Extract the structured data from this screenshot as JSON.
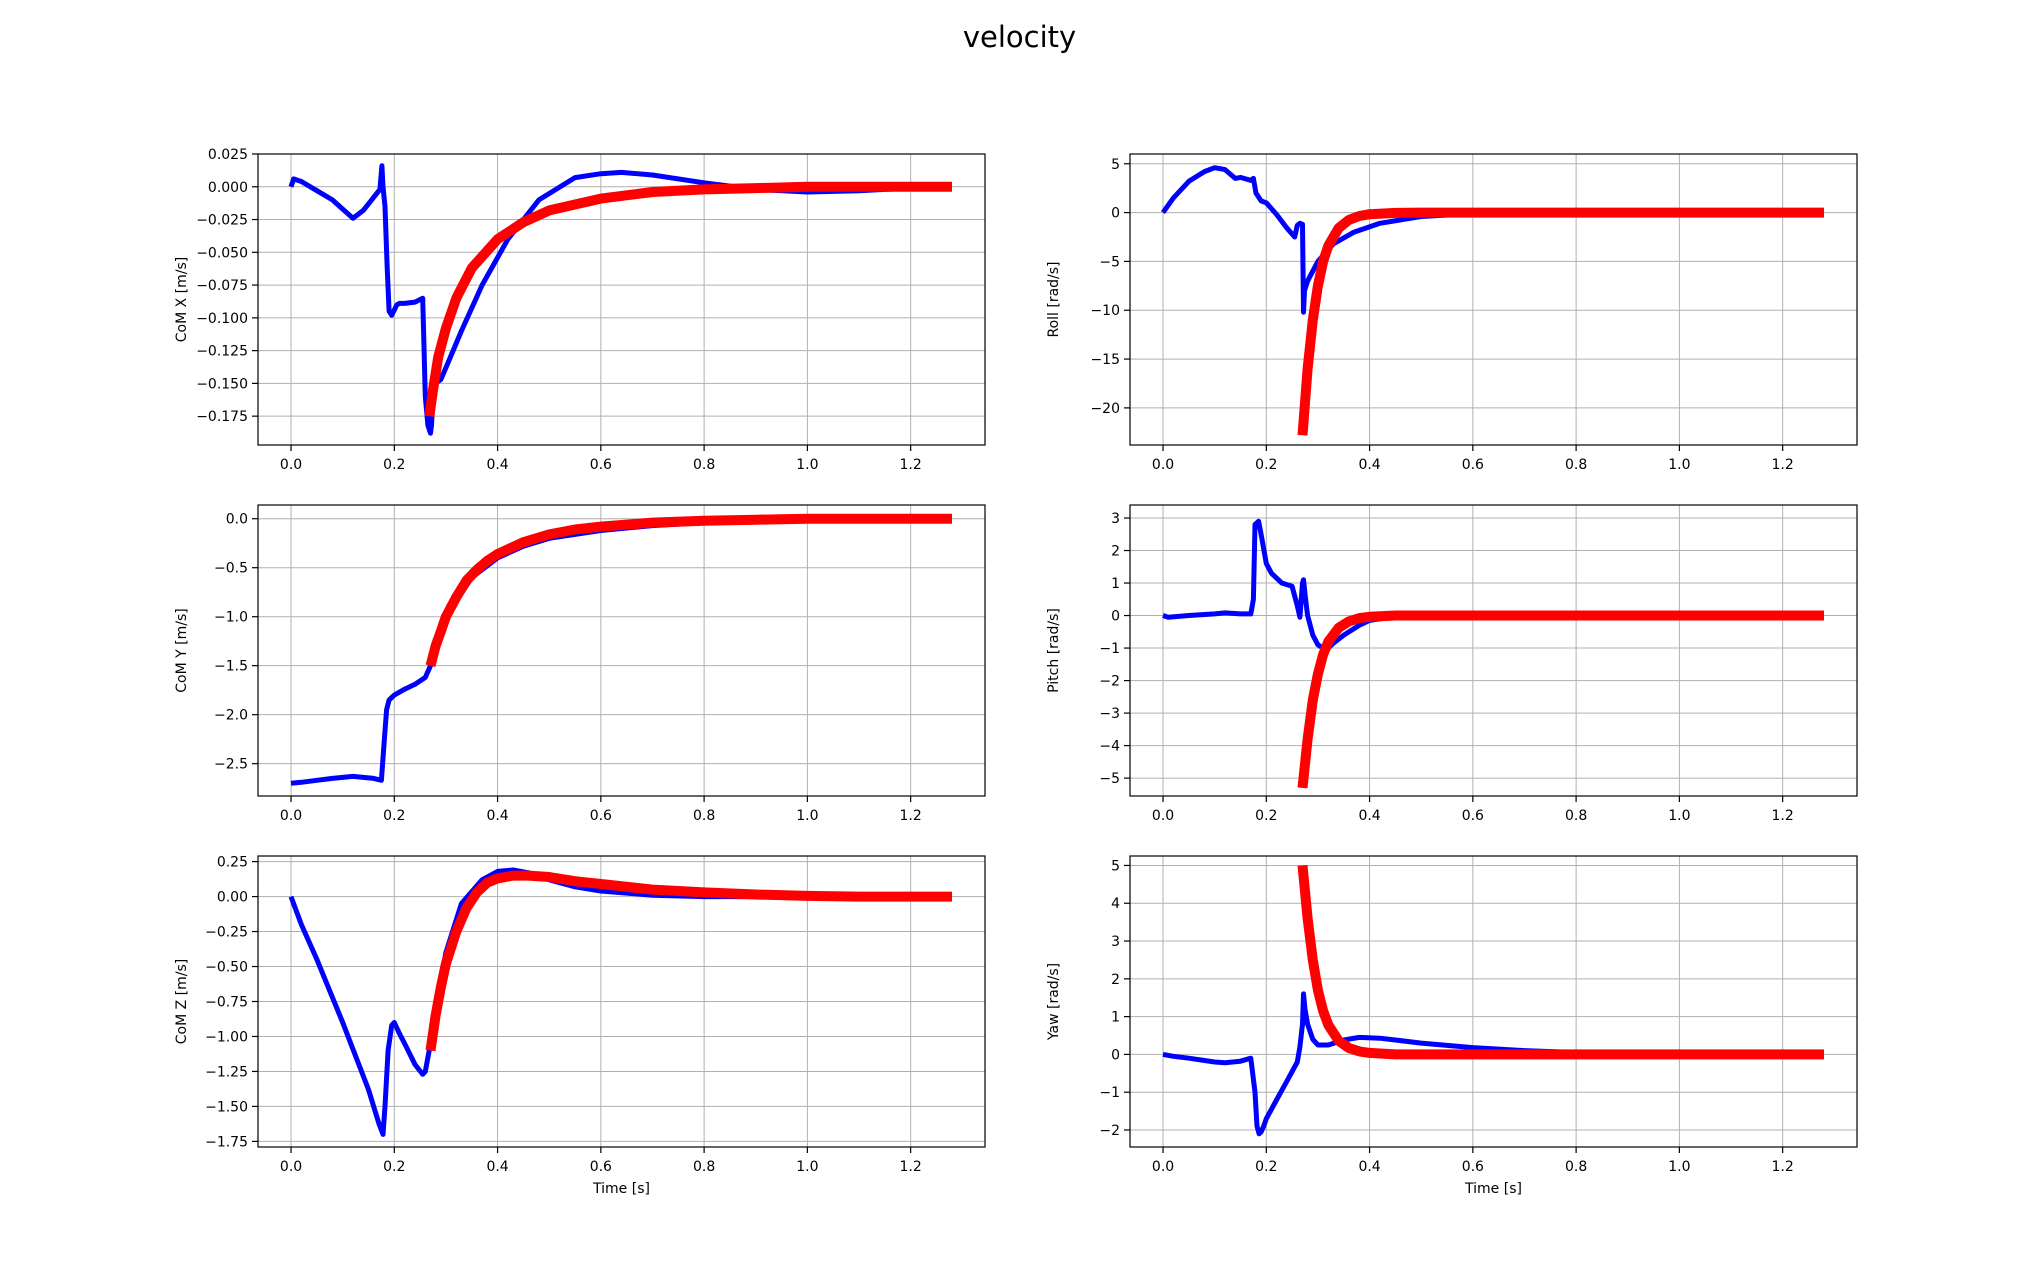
{
  "title": "velocity",
  "colors": {
    "measured": "#0000ff",
    "reference": "#ff0000",
    "grid": "#b0b0b0",
    "axes": "#000000"
  },
  "chart_data": [
    {
      "type": "line",
      "id": "com-x",
      "xlabel": "",
      "ylabel": "CoM X [m/s]",
      "xlim": [
        -0.064,
        1.344
      ],
      "ylim": [
        -0.197,
        0.025
      ],
      "grid": true,
      "xticks": [
        0.0,
        0.2,
        0.4,
        0.6,
        0.8,
        1.0,
        1.2
      ],
      "xtick_labels": [
        "0.0",
        "0.2",
        "0.4",
        "0.6",
        "0.8",
        "1.0",
        "1.2"
      ],
      "yticks": [
        0.025,
        0.0,
        -0.025,
        -0.05,
        -0.075,
        -0.1,
        -0.125,
        -0.15,
        -0.175
      ],
      "ytick_labels": [
        "0.025",
        "0.000",
        "−0.025",
        "−0.050",
        "−0.075",
        "−0.100",
        "−0.125",
        "−0.150",
        "−0.175"
      ],
      "series": [
        {
          "color": "#0000ff",
          "width": 5,
          "x": [
            0.0,
            0.005,
            0.02,
            0.05,
            0.08,
            0.1,
            0.12,
            0.14,
            0.16,
            0.172,
            0.176,
            0.178,
            0.182,
            0.186,
            0.19,
            0.195,
            0.2,
            0.205,
            0.21,
            0.22,
            0.24,
            0.255,
            0.26,
            0.265,
            0.27,
            0.272,
            0.275,
            0.28,
            0.29,
            0.3,
            0.33,
            0.37,
            0.42,
            0.48,
            0.55,
            0.6,
            0.64,
            0.7,
            0.8,
            0.9,
            1.0,
            1.1,
            1.2,
            1.28
          ],
          "y": [
            0.0,
            0.006,
            0.004,
            -0.003,
            -0.01,
            -0.017,
            -0.024,
            -0.018,
            -0.008,
            -0.002,
            0.016,
            0.0,
            -0.015,
            -0.06,
            -0.095,
            -0.098,
            -0.094,
            -0.09,
            -0.089,
            -0.089,
            -0.088,
            -0.085,
            -0.16,
            -0.182,
            -0.188,
            -0.182,
            -0.16,
            -0.15,
            -0.147,
            -0.138,
            -0.11,
            -0.075,
            -0.04,
            -0.01,
            0.007,
            0.01,
            0.011,
            0.009,
            0.003,
            -0.002,
            -0.004,
            -0.003,
            -0.001,
            0.0
          ]
        },
        {
          "color": "#ff0000",
          "width": 10,
          "x": [
            0.268,
            0.275,
            0.285,
            0.3,
            0.32,
            0.35,
            0.4,
            0.45,
            0.5,
            0.6,
            0.7,
            0.8,
            0.9,
            1.0,
            1.1,
            1.2,
            1.28
          ],
          "y": [
            -0.175,
            -0.155,
            -0.13,
            -0.108,
            -0.085,
            -0.062,
            -0.04,
            -0.027,
            -0.018,
            -0.009,
            -0.004,
            -0.002,
            -0.001,
            0.0,
            0.0,
            0.0,
            0.0
          ]
        }
      ]
    },
    {
      "type": "line",
      "id": "roll",
      "xlabel": "",
      "ylabel": "Roll [rad/s]",
      "xlim": [
        -0.064,
        1.344
      ],
      "ylim": [
        -23.8,
        6.0
      ],
      "grid": true,
      "xticks": [
        0.0,
        0.2,
        0.4,
        0.6,
        0.8,
        1.0,
        1.2
      ],
      "xtick_labels": [
        "0.0",
        "0.2",
        "0.4",
        "0.6",
        "0.8",
        "1.0",
        "1.2"
      ],
      "yticks": [
        5,
        0,
        -5,
        -10,
        -15,
        -20
      ],
      "ytick_labels": [
        "5",
        "0",
        "−5",
        "−10",
        "−15",
        "−20"
      ],
      "series": [
        {
          "color": "#0000ff",
          "width": 5,
          "x": [
            0.0,
            0.02,
            0.05,
            0.08,
            0.1,
            0.12,
            0.14,
            0.15,
            0.17,
            0.175,
            0.18,
            0.19,
            0.2,
            0.22,
            0.24,
            0.255,
            0.26,
            0.265,
            0.27,
            0.272,
            0.274,
            0.28,
            0.3,
            0.33,
            0.37,
            0.42,
            0.5,
            0.6,
            0.7,
            0.8,
            1.0,
            1.28
          ],
          "y": [
            0.0,
            1.5,
            3.2,
            4.2,
            4.6,
            4.4,
            3.5,
            3.6,
            3.3,
            3.5,
            2.0,
            1.2,
            1.0,
            -0.2,
            -1.6,
            -2.5,
            -1.3,
            -1.1,
            -1.2,
            -10.2,
            -8.0,
            -7.0,
            -5.0,
            -3.2,
            -2.0,
            -1.1,
            -0.4,
            -0.1,
            0.0,
            0.0,
            0.0,
            0.0
          ]
        },
        {
          "color": "#ff0000",
          "width": 10,
          "x": [
            0.27,
            0.28,
            0.29,
            0.3,
            0.31,
            0.32,
            0.34,
            0.36,
            0.38,
            0.4,
            0.45,
            0.5,
            0.6,
            0.8,
            1.0,
            1.28
          ],
          "y": [
            -22.8,
            -16.0,
            -11.0,
            -7.5,
            -5.0,
            -3.4,
            -1.6,
            -0.75,
            -0.35,
            -0.16,
            -0.03,
            0.0,
            0.0,
            0.0,
            0.0,
            0.0
          ]
        }
      ]
    },
    {
      "type": "line",
      "id": "com-y",
      "xlabel": "",
      "ylabel": "CoM Y [m/s]",
      "xlim": [
        -0.064,
        1.344
      ],
      "ylim": [
        -2.83,
        0.14
      ],
      "grid": true,
      "xticks": [
        0.0,
        0.2,
        0.4,
        0.6,
        0.8,
        1.0,
        1.2
      ],
      "xtick_labels": [
        "0.0",
        "0.2",
        "0.4",
        "0.6",
        "0.8",
        "1.0",
        "1.2"
      ],
      "yticks": [
        0.0,
        -0.5,
        -1.0,
        -1.5,
        -2.0,
        -2.5
      ],
      "ytick_labels": [
        "0.0",
        "−0.5",
        "−1.0",
        "−1.5",
        "−2.0",
        "−2.5"
      ],
      "series": [
        {
          "color": "#0000ff",
          "width": 5,
          "x": [
            0.0,
            0.02,
            0.05,
            0.08,
            0.1,
            0.12,
            0.14,
            0.16,
            0.175,
            0.18,
            0.185,
            0.19,
            0.2,
            0.22,
            0.24,
            0.26,
            0.27,
            0.3,
            0.35,
            0.4,
            0.45,
            0.5,
            0.6,
            0.7,
            0.8,
            0.9,
            1.0,
            1.2,
            1.28
          ],
          "y": [
            -2.7,
            -2.69,
            -2.67,
            -2.65,
            -2.64,
            -2.63,
            -2.64,
            -2.65,
            -2.67,
            -2.3,
            -1.95,
            -1.85,
            -1.8,
            -1.74,
            -1.69,
            -1.62,
            -1.5,
            -1.0,
            -0.6,
            -0.4,
            -0.28,
            -0.2,
            -0.12,
            -0.07,
            -0.04,
            -0.02,
            -0.01,
            0.0,
            0.0
          ]
        },
        {
          "color": "#ff0000",
          "width": 10,
          "x": [
            0.27,
            0.28,
            0.29,
            0.3,
            0.32,
            0.34,
            0.36,
            0.38,
            0.4,
            0.45,
            0.5,
            0.55,
            0.6,
            0.7,
            0.8,
            0.9,
            1.0,
            1.1,
            1.2,
            1.28
          ],
          "y": [
            -1.5,
            -1.3,
            -1.15,
            -1.0,
            -0.8,
            -0.63,
            -0.52,
            -0.43,
            -0.36,
            -0.24,
            -0.16,
            -0.11,
            -0.08,
            -0.04,
            -0.02,
            -0.01,
            0.0,
            0.0,
            0.0,
            0.0
          ]
        }
      ]
    },
    {
      "type": "line",
      "id": "pitch",
      "xlabel": "",
      "ylabel": "Pitch [rad/s]",
      "xlim": [
        -0.064,
        1.344
      ],
      "ylim": [
        -5.55,
        3.4
      ],
      "grid": true,
      "xticks": [
        0.0,
        0.2,
        0.4,
        0.6,
        0.8,
        1.0,
        1.2
      ],
      "xtick_labels": [
        "0.0",
        "0.2",
        "0.4",
        "0.6",
        "0.8",
        "1.0",
        "1.2"
      ],
      "yticks": [
        3,
        2,
        1,
        0,
        -1,
        -2,
        -3,
        -4,
        -5
      ],
      "ytick_labels": [
        "3",
        "2",
        "1",
        "0",
        "−1",
        "−2",
        "−3",
        "−4",
        "−5"
      ],
      "series": [
        {
          "color": "#0000ff",
          "width": 5,
          "x": [
            0.0,
            0.01,
            0.05,
            0.1,
            0.12,
            0.15,
            0.17,
            0.175,
            0.178,
            0.185,
            0.19,
            0.2,
            0.21,
            0.23,
            0.25,
            0.26,
            0.265,
            0.27,
            0.272,
            0.276,
            0.28,
            0.29,
            0.3,
            0.31,
            0.32,
            0.33,
            0.35,
            0.38,
            0.4,
            0.45,
            0.5,
            1.28
          ],
          "y": [
            0.0,
            -0.05,
            0.0,
            0.05,
            0.08,
            0.05,
            0.05,
            0.5,
            2.8,
            2.9,
            2.5,
            1.6,
            1.3,
            1.0,
            0.9,
            0.3,
            -0.05,
            1.0,
            1.1,
            0.5,
            0.0,
            -0.6,
            -0.9,
            -1.0,
            -1.0,
            -0.85,
            -0.6,
            -0.3,
            -0.15,
            -0.03,
            0.0,
            0.0
          ]
        },
        {
          "color": "#ff0000",
          "width": 10,
          "x": [
            0.27,
            0.28,
            0.29,
            0.3,
            0.31,
            0.32,
            0.34,
            0.36,
            0.38,
            0.4,
            0.45,
            0.5,
            0.6,
            0.8,
            1.0,
            1.28
          ],
          "y": [
            -5.3,
            -3.8,
            -2.6,
            -1.8,
            -1.2,
            -0.8,
            -0.38,
            -0.18,
            -0.08,
            -0.04,
            0.0,
            0.0,
            0.0,
            0.0,
            0.0,
            0.0
          ]
        }
      ]
    },
    {
      "type": "line",
      "id": "com-z",
      "xlabel": "Time [s]",
      "ylabel": "CoM Z [m/s]",
      "xlim": [
        -0.064,
        1.344
      ],
      "ylim": [
        -1.79,
        0.29
      ],
      "grid": true,
      "xticks": [
        0.0,
        0.2,
        0.4,
        0.6,
        0.8,
        1.0,
        1.2
      ],
      "xtick_labels": [
        "0.0",
        "0.2",
        "0.4",
        "0.6",
        "0.8",
        "1.0",
        "1.2"
      ],
      "yticks": [
        0.25,
        0.0,
        -0.25,
        -0.5,
        -0.75,
        -1.0,
        -1.25,
        -1.5,
        -1.75
      ],
      "ytick_labels": [
        "0.25",
        "0.00",
        "−0.25",
        "−0.50",
        "−0.75",
        "−1.00",
        "−1.25",
        "−1.50",
        "−1.75"
      ],
      "series": [
        {
          "color": "#0000ff",
          "width": 5,
          "x": [
            0.0,
            0.02,
            0.05,
            0.1,
            0.15,
            0.17,
            0.178,
            0.182,
            0.188,
            0.195,
            0.2,
            0.21,
            0.22,
            0.24,
            0.255,
            0.26,
            0.27,
            0.28,
            0.3,
            0.33,
            0.37,
            0.4,
            0.43,
            0.46,
            0.5,
            0.55,
            0.6,
            0.7,
            0.8,
            1.0,
            1.28
          ],
          "y": [
            0.0,
            -0.2,
            -0.45,
            -0.9,
            -1.38,
            -1.62,
            -1.7,
            -1.5,
            -1.1,
            -0.92,
            -0.9,
            -0.98,
            -1.05,
            -1.2,
            -1.27,
            -1.25,
            -1.05,
            -0.8,
            -0.4,
            -0.05,
            0.12,
            0.18,
            0.19,
            0.17,
            0.12,
            0.07,
            0.04,
            0.01,
            0.0,
            0.0,
            0.0
          ]
        },
        {
          "color": "#ff0000",
          "width": 10,
          "x": [
            0.27,
            0.28,
            0.29,
            0.3,
            0.32,
            0.34,
            0.36,
            0.38,
            0.4,
            0.43,
            0.46,
            0.5,
            0.55,
            0.6,
            0.7,
            0.8,
            0.9,
            1.0,
            1.1,
            1.2,
            1.28
          ],
          "y": [
            -1.1,
            -0.85,
            -0.65,
            -0.48,
            -0.25,
            -0.08,
            0.03,
            0.1,
            0.13,
            0.15,
            0.15,
            0.14,
            0.11,
            0.09,
            0.05,
            0.03,
            0.015,
            0.005,
            0.0,
            0.0,
            0.0
          ]
        }
      ]
    },
    {
      "type": "line",
      "id": "yaw",
      "xlabel": "Time [s]",
      "ylabel": "Yaw [rad/s]",
      "xlim": [
        -0.064,
        1.344
      ],
      "ylim": [
        -2.45,
        5.25
      ],
      "grid": true,
      "xticks": [
        0.0,
        0.2,
        0.4,
        0.6,
        0.8,
        1.0,
        1.2
      ],
      "xtick_labels": [
        "0.0",
        "0.2",
        "0.4",
        "0.6",
        "0.8",
        "1.0",
        "1.2"
      ],
      "yticks": [
        5,
        4,
        3,
        2,
        1,
        0,
        -1,
        -2
      ],
      "ytick_labels": [
        "5",
        "4",
        "3",
        "2",
        "1",
        "0",
        "−1",
        "−2"
      ],
      "series": [
        {
          "color": "#0000ff",
          "width": 5,
          "x": [
            0.0,
            0.02,
            0.05,
            0.1,
            0.12,
            0.15,
            0.17,
            0.178,
            0.182,
            0.186,
            0.19,
            0.195,
            0.2,
            0.22,
            0.24,
            0.26,
            0.265,
            0.27,
            0.272,
            0.275,
            0.28,
            0.29,
            0.3,
            0.32,
            0.35,
            0.38,
            0.42,
            0.45,
            0.5,
            0.6,
            0.7,
            0.8,
            1.0,
            1.28
          ],
          "y": [
            0.0,
            -0.05,
            -0.1,
            -0.2,
            -0.22,
            -0.18,
            -0.1,
            -1.0,
            -1.9,
            -2.1,
            -2.05,
            -1.9,
            -1.7,
            -1.2,
            -0.7,
            -0.2,
            0.2,
            0.8,
            1.6,
            1.2,
            0.8,
            0.4,
            0.25,
            0.25,
            0.38,
            0.45,
            0.43,
            0.38,
            0.3,
            0.18,
            0.1,
            0.05,
            0.02,
            0.0
          ]
        },
        {
          "color": "#ff0000",
          "width": 10,
          "x": [
            0.27,
            0.28,
            0.29,
            0.3,
            0.31,
            0.32,
            0.34,
            0.36,
            0.38,
            0.4,
            0.45,
            0.5,
            0.6,
            0.8,
            1.0,
            1.28
          ],
          "y": [
            5.0,
            3.6,
            2.5,
            1.7,
            1.15,
            0.78,
            0.36,
            0.17,
            0.08,
            0.04,
            0.0,
            0.0,
            0.0,
            0.0,
            0.0,
            0.0
          ]
        }
      ]
    }
  ]
}
